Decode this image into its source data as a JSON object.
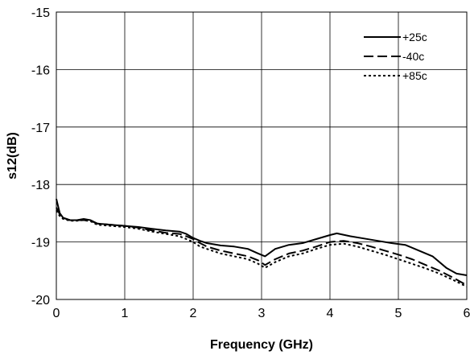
{
  "chart_data": {
    "type": "line",
    "title": "",
    "xlabel": "Frequency (GHz)",
    "ylabel": "s12(dB)",
    "xlim": [
      0,
      6
    ],
    "ylim": [
      -20,
      -15
    ],
    "x_ticks": [
      "0",
      "1",
      "2",
      "3",
      "4",
      "5",
      "6"
    ],
    "y_ticks": [
      "-15",
      "-16",
      "-17",
      "-18",
      "-19",
      "-20"
    ],
    "grid": true,
    "legend_position": "top-right",
    "series": [
      {
        "name": "+25c",
        "style": "solid",
        "points": [
          [
            0,
            -18.25
          ],
          [
            0.05,
            -18.5
          ],
          [
            0.1,
            -18.58
          ],
          [
            0.2,
            -18.62
          ],
          [
            0.3,
            -18.62
          ],
          [
            0.4,
            -18.6
          ],
          [
            0.5,
            -18.62
          ],
          [
            0.6,
            -18.68
          ],
          [
            0.8,
            -18.7
          ],
          [
            1.0,
            -18.72
          ],
          [
            1.2,
            -18.74
          ],
          [
            1.4,
            -18.77
          ],
          [
            1.6,
            -18.8
          ],
          [
            1.8,
            -18.82
          ],
          [
            1.9,
            -18.86
          ],
          [
            2.0,
            -18.93
          ],
          [
            2.1,
            -18.98
          ],
          [
            2.2,
            -19.02
          ],
          [
            2.4,
            -19.06
          ],
          [
            2.6,
            -19.08
          ],
          [
            2.8,
            -19.12
          ],
          [
            2.95,
            -19.2
          ],
          [
            3.05,
            -19.25
          ],
          [
            3.2,
            -19.12
          ],
          [
            3.4,
            -19.05
          ],
          [
            3.6,
            -19.02
          ],
          [
            3.8,
            -18.95
          ],
          [
            4.0,
            -18.88
          ],
          [
            4.1,
            -18.85
          ],
          [
            4.3,
            -18.9
          ],
          [
            4.5,
            -18.94
          ],
          [
            4.7,
            -18.98
          ],
          [
            4.9,
            -19.02
          ],
          [
            5.1,
            -19.05
          ],
          [
            5.3,
            -19.15
          ],
          [
            5.5,
            -19.25
          ],
          [
            5.7,
            -19.45
          ],
          [
            5.85,
            -19.55
          ],
          [
            6.0,
            -19.58
          ]
        ]
      },
      {
        "name": "-40c",
        "style": "dashed",
        "points": [
          [
            0,
            -18.4
          ],
          [
            0.05,
            -18.52
          ],
          [
            0.1,
            -18.58
          ],
          [
            0.2,
            -18.62
          ],
          [
            0.3,
            -18.62
          ],
          [
            0.4,
            -18.62
          ],
          [
            0.5,
            -18.63
          ],
          [
            0.6,
            -18.68
          ],
          [
            0.8,
            -18.7
          ],
          [
            1.0,
            -18.72
          ],
          [
            1.2,
            -18.75
          ],
          [
            1.4,
            -18.8
          ],
          [
            1.6,
            -18.84
          ],
          [
            1.8,
            -18.86
          ],
          [
            1.9,
            -18.9
          ],
          [
            2.0,
            -18.95
          ],
          [
            2.1,
            -19.02
          ],
          [
            2.2,
            -19.08
          ],
          [
            2.4,
            -19.15
          ],
          [
            2.6,
            -19.2
          ],
          [
            2.8,
            -19.25
          ],
          [
            2.95,
            -19.32
          ],
          [
            3.05,
            -19.4
          ],
          [
            3.2,
            -19.3
          ],
          [
            3.4,
            -19.2
          ],
          [
            3.6,
            -19.15
          ],
          [
            3.8,
            -19.08
          ],
          [
            4.0,
            -19.0
          ],
          [
            4.2,
            -18.98
          ],
          [
            4.4,
            -19.02
          ],
          [
            4.6,
            -19.08
          ],
          [
            4.8,
            -19.15
          ],
          [
            5.0,
            -19.22
          ],
          [
            5.2,
            -19.3
          ],
          [
            5.4,
            -19.4
          ],
          [
            5.6,
            -19.5
          ],
          [
            5.8,
            -19.62
          ],
          [
            5.95,
            -19.72
          ],
          [
            6.0,
            -19.74
          ]
        ]
      },
      {
        "name": "+85c",
        "style": "dotted",
        "points": [
          [
            0,
            -18.45
          ],
          [
            0.05,
            -18.55
          ],
          [
            0.1,
            -18.6
          ],
          [
            0.2,
            -18.63
          ],
          [
            0.3,
            -18.63
          ],
          [
            0.4,
            -18.62
          ],
          [
            0.5,
            -18.64
          ],
          [
            0.6,
            -18.7
          ],
          [
            0.8,
            -18.72
          ],
          [
            1.0,
            -18.74
          ],
          [
            1.2,
            -18.77
          ],
          [
            1.4,
            -18.82
          ],
          [
            1.6,
            -18.86
          ],
          [
            1.8,
            -18.9
          ],
          [
            1.9,
            -18.95
          ],
          [
            2.0,
            -19.0
          ],
          [
            2.1,
            -19.08
          ],
          [
            2.2,
            -19.12
          ],
          [
            2.4,
            -19.2
          ],
          [
            2.6,
            -19.25
          ],
          [
            2.8,
            -19.3
          ],
          [
            2.95,
            -19.38
          ],
          [
            3.05,
            -19.45
          ],
          [
            3.2,
            -19.35
          ],
          [
            3.4,
            -19.25
          ],
          [
            3.6,
            -19.2
          ],
          [
            3.8,
            -19.12
          ],
          [
            4.0,
            -19.05
          ],
          [
            4.2,
            -19.03
          ],
          [
            4.4,
            -19.08
          ],
          [
            4.6,
            -19.15
          ],
          [
            4.8,
            -19.22
          ],
          [
            5.0,
            -19.3
          ],
          [
            5.2,
            -19.38
          ],
          [
            5.4,
            -19.46
          ],
          [
            5.6,
            -19.55
          ],
          [
            5.8,
            -19.66
          ],
          [
            5.95,
            -19.75
          ],
          [
            6.0,
            -19.77
          ]
        ]
      }
    ]
  }
}
